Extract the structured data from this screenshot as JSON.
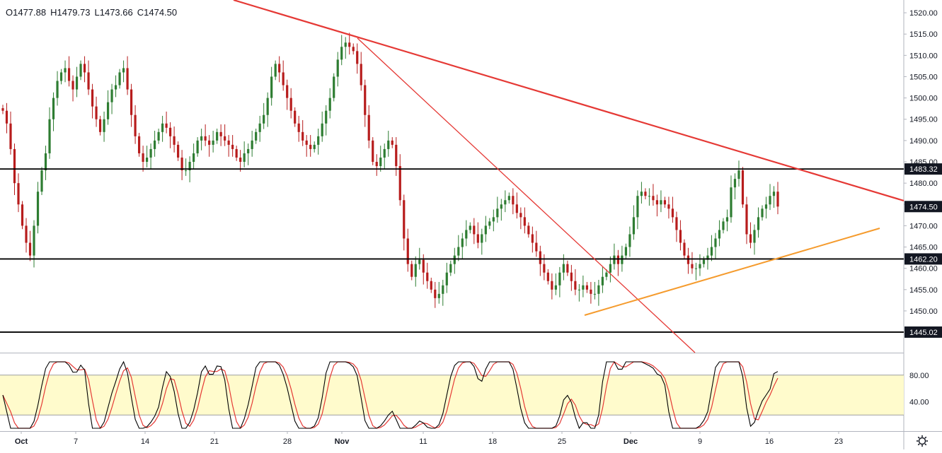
{
  "ohlc": {
    "open": "O1477.88",
    "high": "H1479.73",
    "low": "L1473.66",
    "close": "C1474.50"
  },
  "price_axis": {
    "ticks": [
      "1520.00",
      "1515.00",
      "1510.00",
      "1505.00",
      "1500.00",
      "1495.00",
      "1490.00",
      "1485.00",
      "1480.00",
      "1475.00",
      "1470.00",
      "1465.00",
      "1460.00",
      "1455.00",
      "1450.00"
    ],
    "tick_values": [
      1520,
      1515,
      1510,
      1505,
      1500,
      1495,
      1490,
      1485,
      1480,
      1475,
      1470,
      1465,
      1460,
      1455,
      1450
    ],
    "min": 1440.2,
    "max": 1523.0
  },
  "levels": [
    {
      "label": "1483.32",
      "value": 1483.32,
      "color": "#000000"
    },
    {
      "label": "1462.20",
      "value": 1462.2,
      "color": "#000000"
    },
    {
      "label": "1445.02",
      "value": 1445.02,
      "color": "#000000"
    }
  ],
  "current_price": {
    "label": "1474.50",
    "value": 1474.5,
    "color": "#000000"
  },
  "stoch_axis": {
    "ticks": [
      "80.00",
      "40.00"
    ],
    "tick_values": [
      80,
      40
    ],
    "upper": 80,
    "lower": 20,
    "band_color": "#fffbcc"
  },
  "time_axis": {
    "labels": [
      "Oct",
      "7",
      "14",
      "21",
      "28",
      "Nov",
      "11",
      "18",
      "25",
      "Dec",
      "9",
      "16",
      "23"
    ],
    "bold": [
      true,
      false,
      false,
      false,
      false,
      true,
      false,
      false,
      false,
      true,
      false,
      false,
      false
    ]
  },
  "colors": {
    "up": "#26a69a",
    "down": "#ef5350",
    "candle_body_up": "#2e7d32",
    "candle_body_down": "#b71c1c",
    "trend_red": "#e53935",
    "trend_orange": "#f59b2d",
    "stoch_k": "#000000",
    "stoch_d": "#e53935"
  },
  "icons": {
    "settings": "gear-icon"
  },
  "chart_data": {
    "type": "candlestick",
    "title": "",
    "close_series": [
      1497,
      1494,
      1488,
      1480,
      1475,
      1470,
      1466,
      1463,
      1470,
      1478,
      1483,
      1487,
      1495,
      1500,
      1504,
      1506,
      1507,
      1504,
      1502,
      1505,
      1508,
      1506,
      1502,
      1498,
      1495,
      1492,
      1495,
      1499,
      1502,
      1503,
      1506,
      1507,
      1502,
      1496,
      1491,
      1487,
      1485,
      1486,
      1488,
      1490,
      1492,
      1494,
      1493,
      1491,
      1489,
      1486,
      1483,
      1483,
      1485,
      1487,
      1490,
      1491,
      1490,
      1489,
      1490,
      1492,
      1491,
      1490,
      1489,
      1488,
      1486,
      1485,
      1487,
      1488,
      1490,
      1492,
      1494,
      1496,
      1500,
      1505,
      1508,
      1506,
      1503,
      1500,
      1497,
      1494,
      1492,
      1490,
      1489,
      1488,
      1489,
      1491,
      1494,
      1497,
      1500,
      1505,
      1509,
      1512,
      1513,
      1512,
      1511,
      1508,
      1503,
      1496,
      1490,
      1485,
      1484,
      1486,
      1488,
      1490,
      1489,
      1484,
      1476,
      1467,
      1461,
      1458,
      1461,
      1462,
      1459,
      1457,
      1455,
      1453,
      1454,
      1456,
      1459,
      1461,
      1463,
      1465,
      1467,
      1469,
      1470,
      1468,
      1466,
      1468,
      1470,
      1471,
      1472,
      1474,
      1475,
      1476,
      1477,
      1475,
      1473,
      1472,
      1470,
      1468,
      1466,
      1464,
      1461,
      1459,
      1457,
      1455,
      1456,
      1459,
      1461,
      1459,
      1457,
      1455,
      1455,
      1456,
      1455,
      1454,
      1454,
      1456,
      1458,
      1459,
      1461,
      1463,
      1461,
      1463,
      1465,
      1468,
      1472,
      1477,
      1478,
      1477,
      1477,
      1476,
      1475,
      1476,
      1475,
      1474,
      1472,
      1469,
      1466,
      1463,
      1461,
      1460,
      1460,
      1461,
      1462,
      1463,
      1465,
      1467,
      1469,
      1471,
      1472,
      1479,
      1481,
      1483,
      1475,
      1468,
      1466,
      1469,
      1472,
      1474,
      1475,
      1477,
      1478,
      1474.5
    ],
    "levels": [
      1483.32,
      1462.2,
      1445.02
    ],
    "current": 1474.5
  }
}
